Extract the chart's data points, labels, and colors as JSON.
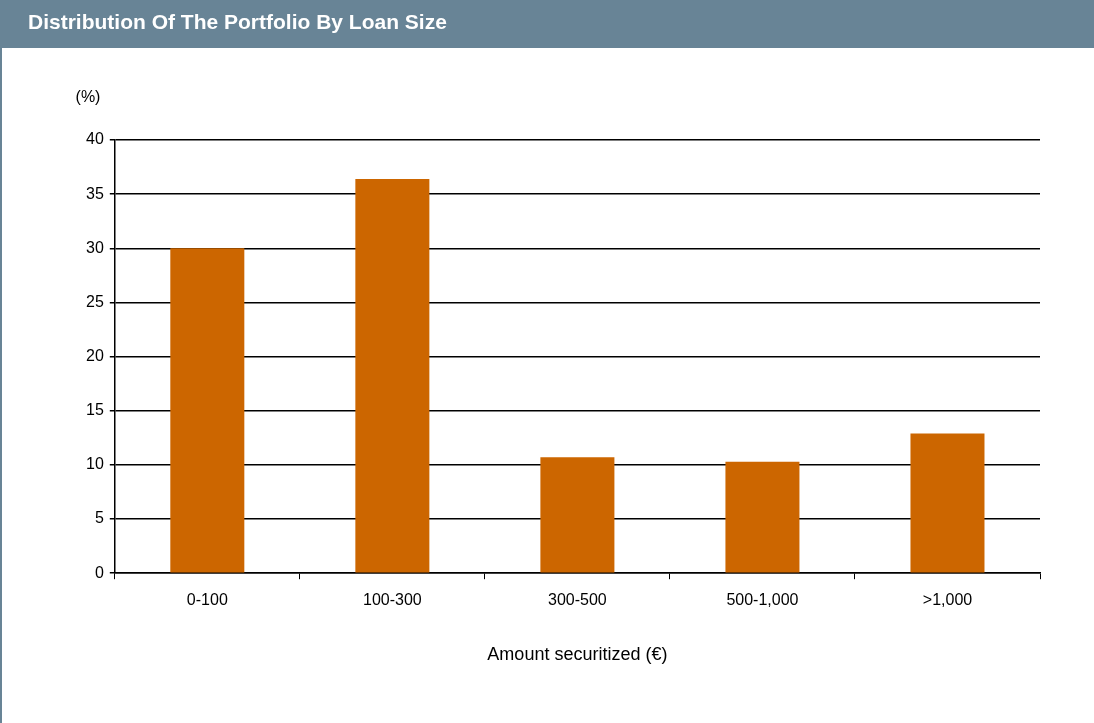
{
  "chart_data": {
    "type": "bar",
    "title": "Distribution Of The Portfolio By Loan Size",
    "categories": [
      "0-100",
      "100-300",
      "300-500",
      "500-1,000",
      ">1,000"
    ],
    "values": [
      30,
      36.4,
      10.7,
      10.3,
      12.9
    ],
    "color": "#cc6600",
    "ylabel": "(%)",
    "xlabel": "Amount securitized (€)",
    "ylim": [
      0,
      40
    ],
    "yticks": [
      0,
      5,
      10,
      15,
      20,
      25,
      30,
      35,
      40
    ],
    "grid": "y",
    "legend": false
  }
}
